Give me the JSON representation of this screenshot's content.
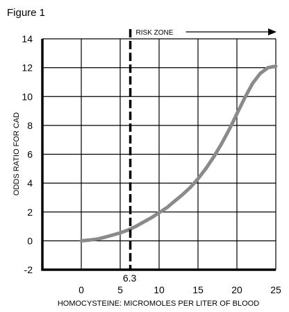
{
  "figure_label": "Figure 1",
  "chart_data": {
    "type": "line",
    "title": "",
    "xlabel": "HOMOCYSTEINE: MICROMOLES PER LITER OF BLOOD",
    "ylabel": "ODDS RATIO FOR CAD",
    "xlim": [
      -5,
      25
    ],
    "ylim": [
      -2,
      14
    ],
    "xticks": [
      "0",
      "5",
      "10",
      "15",
      "20",
      "25"
    ],
    "yticks": [
      "-2",
      "0",
      "2",
      "4",
      "6",
      "8",
      "10",
      "12",
      "14"
    ],
    "grid": true,
    "series": [
      {
        "x": [
          0,
          1,
          2,
          3,
          4,
          5,
          6,
          7,
          8,
          9,
          10,
          11,
          12,
          13,
          14,
          15,
          16,
          17,
          18,
          19,
          20,
          21,
          22,
          23,
          24,
          25
        ],
        "y": [
          0,
          0.05,
          0.12,
          0.25,
          0.4,
          0.55,
          0.75,
          1.0,
          1.3,
          1.6,
          1.95,
          2.3,
          2.75,
          3.2,
          3.7,
          4.3,
          5.0,
          5.8,
          6.7,
          7.7,
          8.8,
          9.9,
          10.9,
          11.6,
          12.0,
          12.1
        ],
        "color": "#8a8a8a"
      }
    ],
    "annotations": {
      "threshold_x": 6.3,
      "threshold_label": "6.3",
      "zone_label": "RISK ZONE"
    }
  }
}
